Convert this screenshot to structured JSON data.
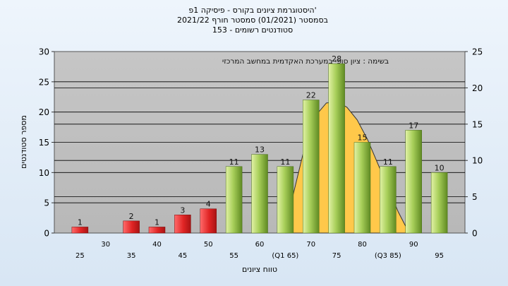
{
  "chart_data": {
    "type": "bar",
    "title_lines": [
      "היסטוגרמת ציונים בקורס - פיסיקה 1פ'",
      "בסמסטר  (01/2021)  סמסטר חורף 2021/22",
      "153 - סטודנטים רשומים"
    ],
    "xlabel": "טווח ציונים",
    "ylabel": "מספר סטודנטים",
    "annotation": "בשימה : ציון סופי במערכת האקדמית במחשב המרכזי",
    "ylim": [
      0,
      30
    ],
    "y_ticks": [
      0,
      5,
      10,
      15,
      20,
      25,
      30
    ],
    "y2lim": [
      0,
      25
    ],
    "y2_ticks": [
      0,
      5,
      10,
      15,
      20,
      25
    ],
    "grid": true,
    "x_axis_labels": [
      {
        "label": "25",
        "x": 25,
        "row": "low"
      },
      {
        "label": "30",
        "x": 30,
        "row": "high"
      },
      {
        "label": "35",
        "x": 35,
        "row": "low"
      },
      {
        "label": "40",
        "x": 40,
        "row": "high"
      },
      {
        "label": "45",
        "x": 45,
        "row": "low"
      },
      {
        "label": "50",
        "x": 50,
        "row": "high"
      },
      {
        "label": "55",
        "x": 55,
        "row": "low"
      },
      {
        "label": "60",
        "x": 60,
        "row": "high"
      },
      {
        "label": "(Q1 65)",
        "x": 65,
        "row": "low"
      },
      {
        "label": "70",
        "x": 70,
        "row": "high"
      },
      {
        "label": "75",
        "x": 75,
        "row": "low"
      },
      {
        "label": "80",
        "x": 80,
        "row": "high"
      },
      {
        "label": "(Q3 85)",
        "x": 85,
        "row": "low"
      },
      {
        "label": "90",
        "x": 90,
        "row": "high"
      },
      {
        "label": "95",
        "x": 95,
        "row": "low"
      }
    ],
    "bars": [
      {
        "x": 25,
        "value": 1,
        "color": "red"
      },
      {
        "x": 30,
        "value": 0,
        "color": "red"
      },
      {
        "x": 35,
        "value": 2,
        "color": "red"
      },
      {
        "x": 40,
        "value": 1,
        "color": "red"
      },
      {
        "x": 45,
        "value": 3,
        "color": "red"
      },
      {
        "x": 50,
        "value": 4,
        "color": "red"
      },
      {
        "x": 55,
        "value": 11,
        "color": "green"
      },
      {
        "x": 60,
        "value": 13,
        "color": "green"
      },
      {
        "x": 65,
        "value": 11,
        "color": "green"
      },
      {
        "x": 70,
        "value": 22,
        "color": "green"
      },
      {
        "x": 75,
        "value": 28,
        "color": "green"
      },
      {
        "x": 80,
        "value": 15,
        "color": "green"
      },
      {
        "x": 85,
        "value": 11,
        "color": "green"
      },
      {
        "x": 90,
        "value": 17,
        "color": "green"
      },
      {
        "x": 95,
        "value": 10,
        "color": "green"
      }
    ],
    "bar_labels": [
      "1",
      "",
      "2",
      "1",
      "3",
      "4",
      "11",
      "13",
      "11",
      "22",
      "28",
      "15",
      "11",
      "17",
      "10"
    ],
    "curve": [
      [
        65,
        1
      ],
      [
        67,
        8
      ],
      [
        69,
        15
      ],
      [
        71,
        19.5
      ],
      [
        73,
        21.5
      ],
      [
        75,
        21.7
      ],
      [
        77,
        20.8
      ],
      [
        79,
        18.7
      ],
      [
        81,
        15.5
      ],
      [
        83,
        11.5
      ],
      [
        85,
        7.5
      ],
      [
        87,
        3.5
      ],
      [
        89,
        0.2
      ]
    ],
    "colors": {
      "red_light": "#ff5a5a",
      "red_dark": "#a81414",
      "green_light": "#d9ec9a",
      "green_dark": "#5f8a22",
      "curve_fill": "#ffc84a",
      "plot_bg": "#c4c4c4",
      "grid": "#000000"
    }
  }
}
